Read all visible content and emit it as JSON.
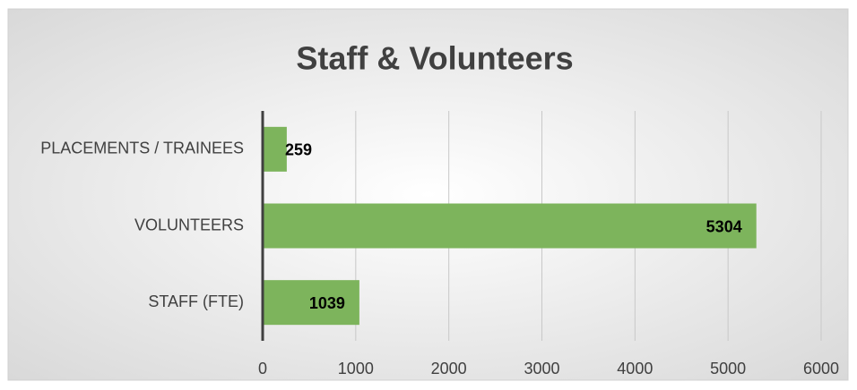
{
  "chart_data": {
    "type": "bar",
    "orientation": "horizontal",
    "title": "Staff & Volunteers",
    "categories": [
      "PLACEMENTS / TRAINEES",
      "VOLUNTEERS",
      "STAFF (FTE)"
    ],
    "values": [
      259,
      5304,
      1039
    ],
    "color": "#7db45c",
    "xlim": [
      0,
      6000
    ],
    "xticks": [
      0,
      1000,
      2000,
      3000,
      4000,
      5000,
      6000
    ],
    "grid": true
  }
}
